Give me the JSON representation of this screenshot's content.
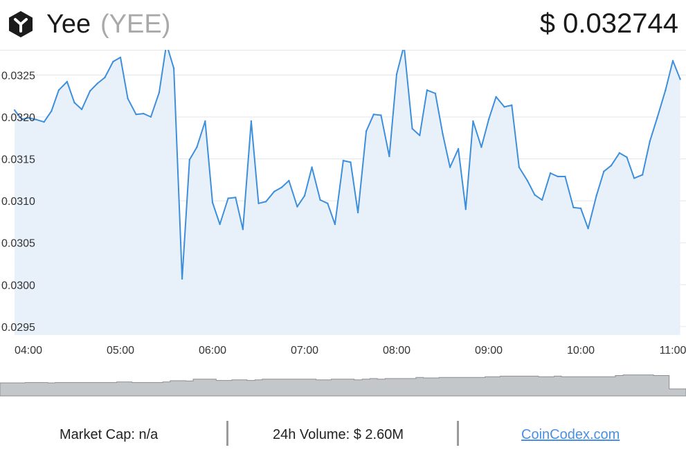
{
  "header": {
    "coin_name": "Yee",
    "coin_symbol": "(YEE)",
    "price": "$ 0.032744",
    "logo_icon": "yee-logo-icon"
  },
  "chart_data": {
    "type": "area",
    "title": "",
    "xlabel": "",
    "ylabel": "",
    "ylim": [
      0.0294,
      0.0328
    ],
    "yticks": [
      0.0325,
      0.032,
      0.0315,
      0.031,
      0.0305,
      0.03,
      0.0295
    ],
    "ytick_labels": [
      "0.0325",
      "0.0320",
      "0.0315",
      "0.0310",
      "0.0305",
      "0.0300",
      "0.0295"
    ],
    "xticks": [
      "04:00",
      "05:00",
      "06:00",
      "07:00",
      "08:00",
      "09:00",
      "10:00",
      "11:00"
    ],
    "x_hours": [
      3.85,
      3.93,
      4.0,
      4.08,
      4.17,
      4.25,
      4.33,
      4.42,
      4.5,
      4.58,
      4.67,
      4.75,
      4.83,
      4.92,
      5.0,
      5.08,
      5.17,
      5.25,
      5.33,
      5.42,
      5.5,
      5.58,
      5.67,
      5.75,
      5.83,
      5.92,
      6.0,
      6.08,
      6.17,
      6.25,
      6.33,
      6.42,
      6.5,
      6.58,
      6.67,
      6.75,
      6.83,
      6.92,
      7.0,
      7.08,
      7.17,
      7.25,
      7.33,
      7.42,
      7.5,
      7.58,
      7.67,
      7.75,
      7.83,
      7.92,
      8.0,
      8.08,
      8.17,
      8.25,
      8.33,
      8.42,
      8.5,
      8.58,
      8.67,
      8.75,
      8.83,
      8.92,
      9.0,
      9.08,
      9.17,
      9.25,
      9.33,
      9.42,
      9.5,
      9.58,
      9.67,
      9.75,
      9.83,
      9.92,
      10.0,
      10.08,
      10.17,
      10.25,
      10.33,
      10.42,
      10.5,
      10.58,
      10.67,
      10.75,
      10.83,
      10.92,
      11.0,
      11.08
    ],
    "values": [
      0.03208,
      0.03197,
      0.03199,
      0.03197,
      0.03194,
      0.03207,
      0.03232,
      0.03242,
      0.03217,
      0.03209,
      0.03231,
      0.0324,
      0.03247,
      0.03266,
      0.03271,
      0.03222,
      0.03203,
      0.03204,
      0.032,
      0.03229,
      0.03287,
      0.03258,
      0.03007,
      0.03149,
      0.03164,
      0.03195,
      0.03098,
      0.03072,
      0.03103,
      0.03104,
      0.03066,
      0.03195,
      0.03097,
      0.03099,
      0.03111,
      0.03116,
      0.03124,
      0.03093,
      0.03106,
      0.0314,
      0.03101,
      0.03097,
      0.03072,
      0.03148,
      0.03146,
      0.03086,
      0.03183,
      0.03203,
      0.03202,
      0.03153,
      0.03251,
      0.03285,
      0.03186,
      0.03178,
      0.03232,
      0.03228,
      0.0318,
      0.0314,
      0.03162,
      0.0309,
      0.03195,
      0.03164,
      0.03197,
      0.03224,
      0.03212,
      0.03214,
      0.0314,
      0.03124,
      0.03107,
      0.03101,
      0.03133,
      0.03129,
      0.03129,
      0.03092,
      0.03091,
      0.03067,
      0.03106,
      0.03135,
      0.03142,
      0.03157,
      0.03152,
      0.03127,
      0.03131,
      0.03171,
      0.03199,
      0.03232,
      0.03267,
      0.03245
    ],
    "volume_relative": [
      0.43,
      0.43,
      0.44,
      0.44,
      0.44,
      0.43,
      0.44,
      0.44,
      0.44,
      0.44,
      0.44,
      0.44,
      0.44,
      0.44,
      0.46,
      0.46,
      0.44,
      0.44,
      0.44,
      0.44,
      0.46,
      0.5,
      0.5,
      0.49,
      0.55,
      0.55,
      0.55,
      0.51,
      0.51,
      0.53,
      0.53,
      0.51,
      0.53,
      0.55,
      0.55,
      0.55,
      0.55,
      0.55,
      0.55,
      0.55,
      0.53,
      0.53,
      0.55,
      0.55,
      0.55,
      0.53,
      0.55,
      0.57,
      0.55,
      0.57,
      0.57,
      0.57,
      0.57,
      0.61,
      0.59,
      0.59,
      0.61,
      0.61,
      0.61,
      0.61,
      0.61,
      0.61,
      0.63,
      0.63,
      0.65,
      0.65,
      0.65,
      0.65,
      0.65,
      0.63,
      0.63,
      0.65,
      0.63,
      0.63,
      0.63,
      0.63,
      0.63,
      0.63,
      0.63,
      0.67,
      0.69,
      0.69,
      0.69,
      0.69,
      0.67,
      0.67,
      0.23,
      0.23
    ],
    "grid": true,
    "colors": {
      "line": "#3d8fdc",
      "fill": "#e8f0fa",
      "grid": "#e2e6eb",
      "volume": "#c4c7ca",
      "volume_edge": "#8a8f94"
    }
  },
  "footer": {
    "market_cap": "Market Cap: n/a",
    "volume_24h": "24h Volume: $ 2.60M",
    "source_link": "CoinCodex.com"
  }
}
